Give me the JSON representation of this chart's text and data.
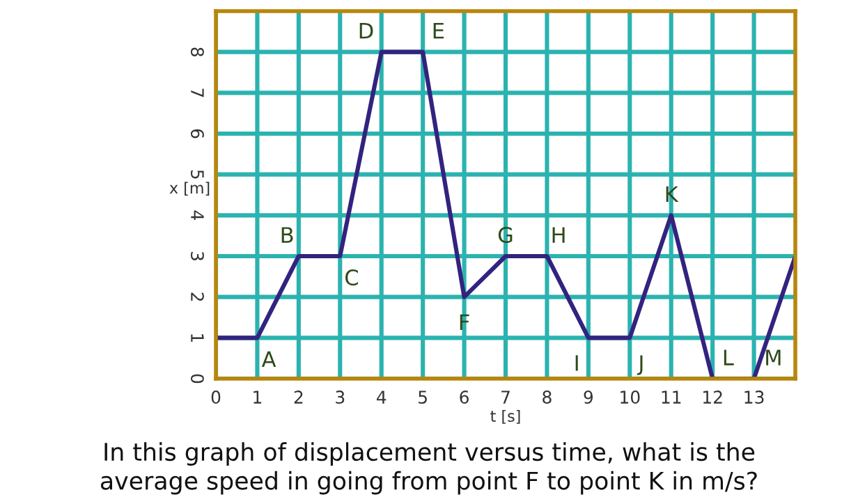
{
  "chart_data": {
    "type": "line",
    "xlabel": "t [s]",
    "ylabel": "x [m]",
    "x": [
      0,
      1,
      2,
      3,
      4,
      5,
      6,
      7,
      8,
      9,
      10,
      11,
      12,
      13,
      14
    ],
    "series": [
      {
        "color": "#33237f",
        "values": [
          1,
          1,
          3,
          3,
          8,
          8,
          2,
          3,
          3,
          1,
          1,
          4,
          0,
          0,
          3
        ]
      }
    ],
    "xlim": [
      0,
      14
    ],
    "ylim": [
      0,
      9
    ],
    "xticks": [
      0,
      1,
      2,
      3,
      4,
      5,
      6,
      7,
      8,
      9,
      10,
      11,
      12,
      13
    ],
    "yticks": [
      0,
      1,
      2,
      3,
      4,
      5,
      6,
      7,
      8
    ],
    "grid": true,
    "marker": "none",
    "line_style": "solid",
    "legend": false,
    "annotations": [
      {
        "text": "A",
        "x": 1,
        "y": 1
      },
      {
        "text": "B",
        "x": 2,
        "y": 3
      },
      {
        "text": "C",
        "x": 3,
        "y": 3
      },
      {
        "text": "D",
        "x": 4,
        "y": 8
      },
      {
        "text": "E",
        "x": 5,
        "y": 8
      },
      {
        "text": "F",
        "x": 6,
        "y": 2
      },
      {
        "text": "G",
        "x": 7,
        "y": 3
      },
      {
        "text": "H",
        "x": 8,
        "y": 3
      },
      {
        "text": "I",
        "x": 9,
        "y": 1
      },
      {
        "text": "J",
        "x": 10,
        "y": 1
      },
      {
        "text": "K",
        "x": 11,
        "y": 4
      },
      {
        "text": "L",
        "x": 12,
        "y": 0
      },
      {
        "text": "M",
        "x": 13,
        "y": 0
      },
      "In this graph of displacement versus time, what is the\naverage speed in going from point F to point K in m/s?"
    ]
  }
}
